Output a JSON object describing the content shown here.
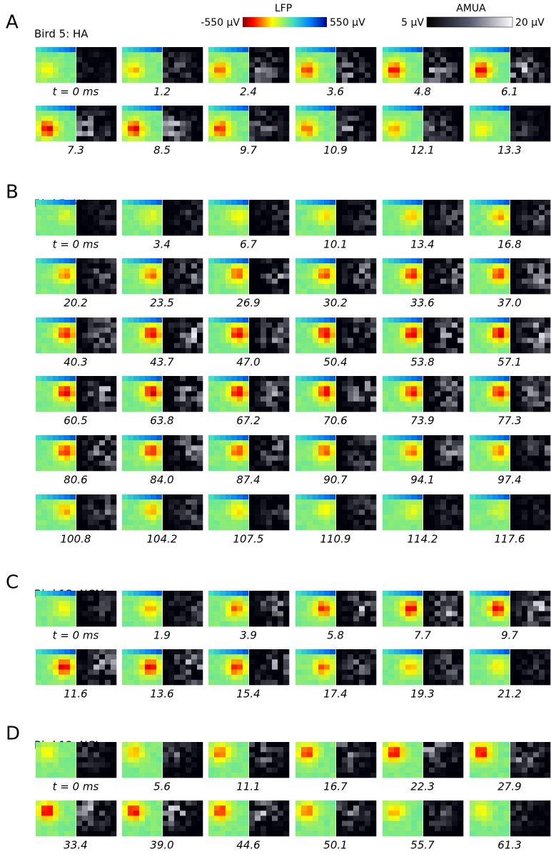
{
  "colorbars": [
    {
      "label": "LFP",
      "min_label": "-550 µV",
      "max_label": "550 µV"
    },
    {
      "label": "AMUA",
      "min_label": "5 µV",
      "max_label": "20 µV"
    }
  ],
  "panels": [
    {
      "letter": "A",
      "title": "Bird 5: HA",
      "frames": [
        "t = 0 ms",
        "1.2",
        "2.4",
        "3.6",
        "4.8",
        "6.1",
        "7.3",
        "8.5",
        "9.7",
        "10.9",
        "12.1",
        "13.3"
      ]
    },
    {
      "letter": "B",
      "title": "Bird 5: HA",
      "frames": [
        "t = 0 ms",
        "3.4",
        "6.7",
        "10.1",
        "13.4",
        "16.8",
        "20.2",
        "23.5",
        "26.9",
        "30.2",
        "33.6",
        "37.0",
        "40.3",
        "43.7",
        "47.0",
        "50.4",
        "53.8",
        "57.1",
        "60.5",
        "63.8",
        "67.2",
        "70.6",
        "73.9",
        "77.3",
        "80.6",
        "84.0",
        "87.4",
        "90.7",
        "94.1",
        "97.4",
        "100.8",
        "104.2",
        "107.5",
        "110.9",
        "114.2",
        "117.6"
      ]
    },
    {
      "letter": "C",
      "title": "Bird 13: NCM",
      "frames": [
        "t = 0 ms",
        "1.9",
        "3.9",
        "5.8",
        "7.7",
        "9.7",
        "11.6",
        "13.6",
        "15.4",
        "17.4",
        "19.3",
        "21.2"
      ]
    },
    {
      "letter": "D",
      "title": "Bird 12: NCL",
      "frames": [
        "t = 0 ms",
        "5.6",
        "11.1",
        "16.7",
        "22.3",
        "27.9",
        "33.4",
        "39.0",
        "44.6",
        "50.1",
        "55.7",
        "61.3"
      ]
    }
  ]
}
